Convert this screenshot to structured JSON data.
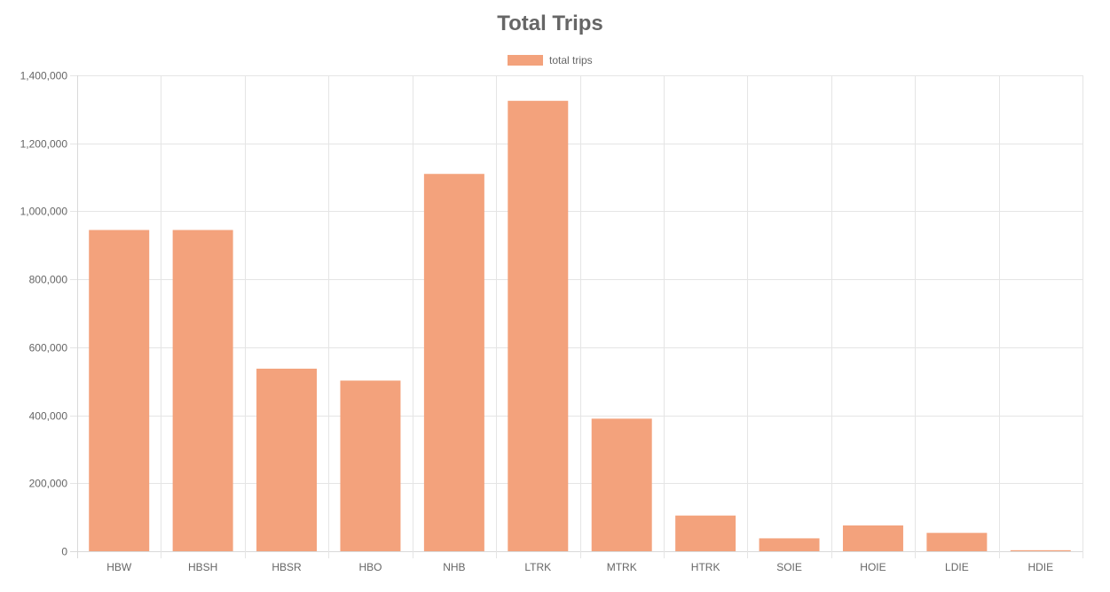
{
  "chart_data": {
    "type": "bar",
    "title": "Total Trips",
    "xlabel": "",
    "ylabel": "",
    "categories": [
      "HBW",
      "HBSH",
      "HBSR",
      "HBO",
      "NHB",
      "LTRK",
      "MTRK",
      "HTRK",
      "SOIE",
      "HOIE",
      "LDIE",
      "HDIE"
    ],
    "series": [
      {
        "name": "total trips",
        "color": "#f3a27c",
        "values": [
          945000,
          945000,
          537000,
          502000,
          1110000,
          1325000,
          390000,
          105000,
          38000,
          76000,
          54000,
          3000
        ]
      }
    ],
    "ylim": [
      0,
      1400000
    ],
    "yticks": [
      0,
      200000,
      400000,
      600000,
      800000,
      1000000,
      1200000,
      1400000
    ],
    "ytick_labels": [
      "0",
      "200,000",
      "400,000",
      "600,000",
      "800,000",
      "1,000,000",
      "1,200,000",
      "1,400,000"
    ],
    "grid": true,
    "legend_position": "top-center"
  }
}
